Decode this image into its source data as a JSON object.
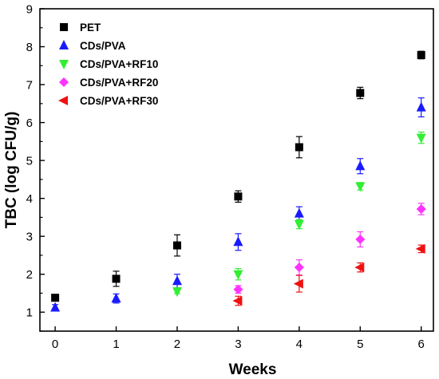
{
  "chart_data": {
    "type": "scatter",
    "title": "",
    "xlabel": "Weeks",
    "ylabel": "TBC (log CFU/g)",
    "xlim": [
      -0.25,
      6.2
    ],
    "ylim": [
      0.5,
      9
    ],
    "xticks": [
      0,
      1,
      2,
      3,
      4,
      5,
      6
    ],
    "yticks": [
      1,
      2,
      3,
      4,
      5,
      6,
      7,
      8,
      9
    ],
    "grid": false,
    "legend_position": "top-left",
    "error_bars": true,
    "series": [
      {
        "name": "PET",
        "marker": "square",
        "color": "#000000",
        "points": [
          {
            "x": 0,
            "y": 1.38,
            "err": 0.08
          },
          {
            "x": 1,
            "y": 1.88,
            "err": 0.2
          },
          {
            "x": 2,
            "y": 2.76,
            "err": 0.28
          },
          {
            "x": 3,
            "y": 4.05,
            "err": 0.15
          },
          {
            "x": 4,
            "y": 5.35,
            "err": 0.28
          },
          {
            "x": 5,
            "y": 6.78,
            "err": 0.15
          },
          {
            "x": 6,
            "y": 7.78,
            "err": 0.1
          }
        ]
      },
      {
        "name": "CDs/PVA",
        "marker": "triangle-up",
        "color": "#1a1aff",
        "points": [
          {
            "x": 0,
            "y": 1.12,
            "err": 0.08
          },
          {
            "x": 1,
            "y": 1.36,
            "err": 0.12
          },
          {
            "x": 2,
            "y": 1.82,
            "err": 0.18
          },
          {
            "x": 3,
            "y": 2.85,
            "err": 0.22
          },
          {
            "x": 4,
            "y": 3.6,
            "err": 0.18
          },
          {
            "x": 5,
            "y": 4.85,
            "err": 0.2
          },
          {
            "x": 6,
            "y": 6.4,
            "err": 0.25
          }
        ]
      },
      {
        "name": "CDs/PVA+RF10",
        "marker": "triangle-down",
        "color": "#33ee33",
        "points": [
          {
            "x": 2,
            "y": 1.55,
            "err": 0.06
          },
          {
            "x": 3,
            "y": 2.0,
            "err": 0.15
          },
          {
            "x": 4,
            "y": 3.32,
            "err": 0.12
          },
          {
            "x": 5,
            "y": 4.32,
            "err": 0.1
          },
          {
            "x": 6,
            "y": 5.6,
            "err": 0.15
          }
        ]
      },
      {
        "name": "CDs/PVA+RF20",
        "marker": "diamond",
        "color": "#ff33ff",
        "points": [
          {
            "x": 3,
            "y": 1.6,
            "err": 0.1
          },
          {
            "x": 4,
            "y": 2.18,
            "err": 0.2
          },
          {
            "x": 5,
            "y": 2.92,
            "err": 0.2
          },
          {
            "x": 6,
            "y": 3.72,
            "err": 0.15
          }
        ]
      },
      {
        "name": "CDs/PVA+RF30",
        "marker": "triangle-left",
        "color": "#ee1111",
        "points": [
          {
            "x": 3,
            "y": 1.3,
            "err": 0.12
          },
          {
            "x": 4,
            "y": 1.75,
            "err": 0.22
          },
          {
            "x": 5,
            "y": 2.18,
            "err": 0.12
          },
          {
            "x": 6,
            "y": 2.67,
            "err": 0.1
          }
        ]
      }
    ]
  }
}
